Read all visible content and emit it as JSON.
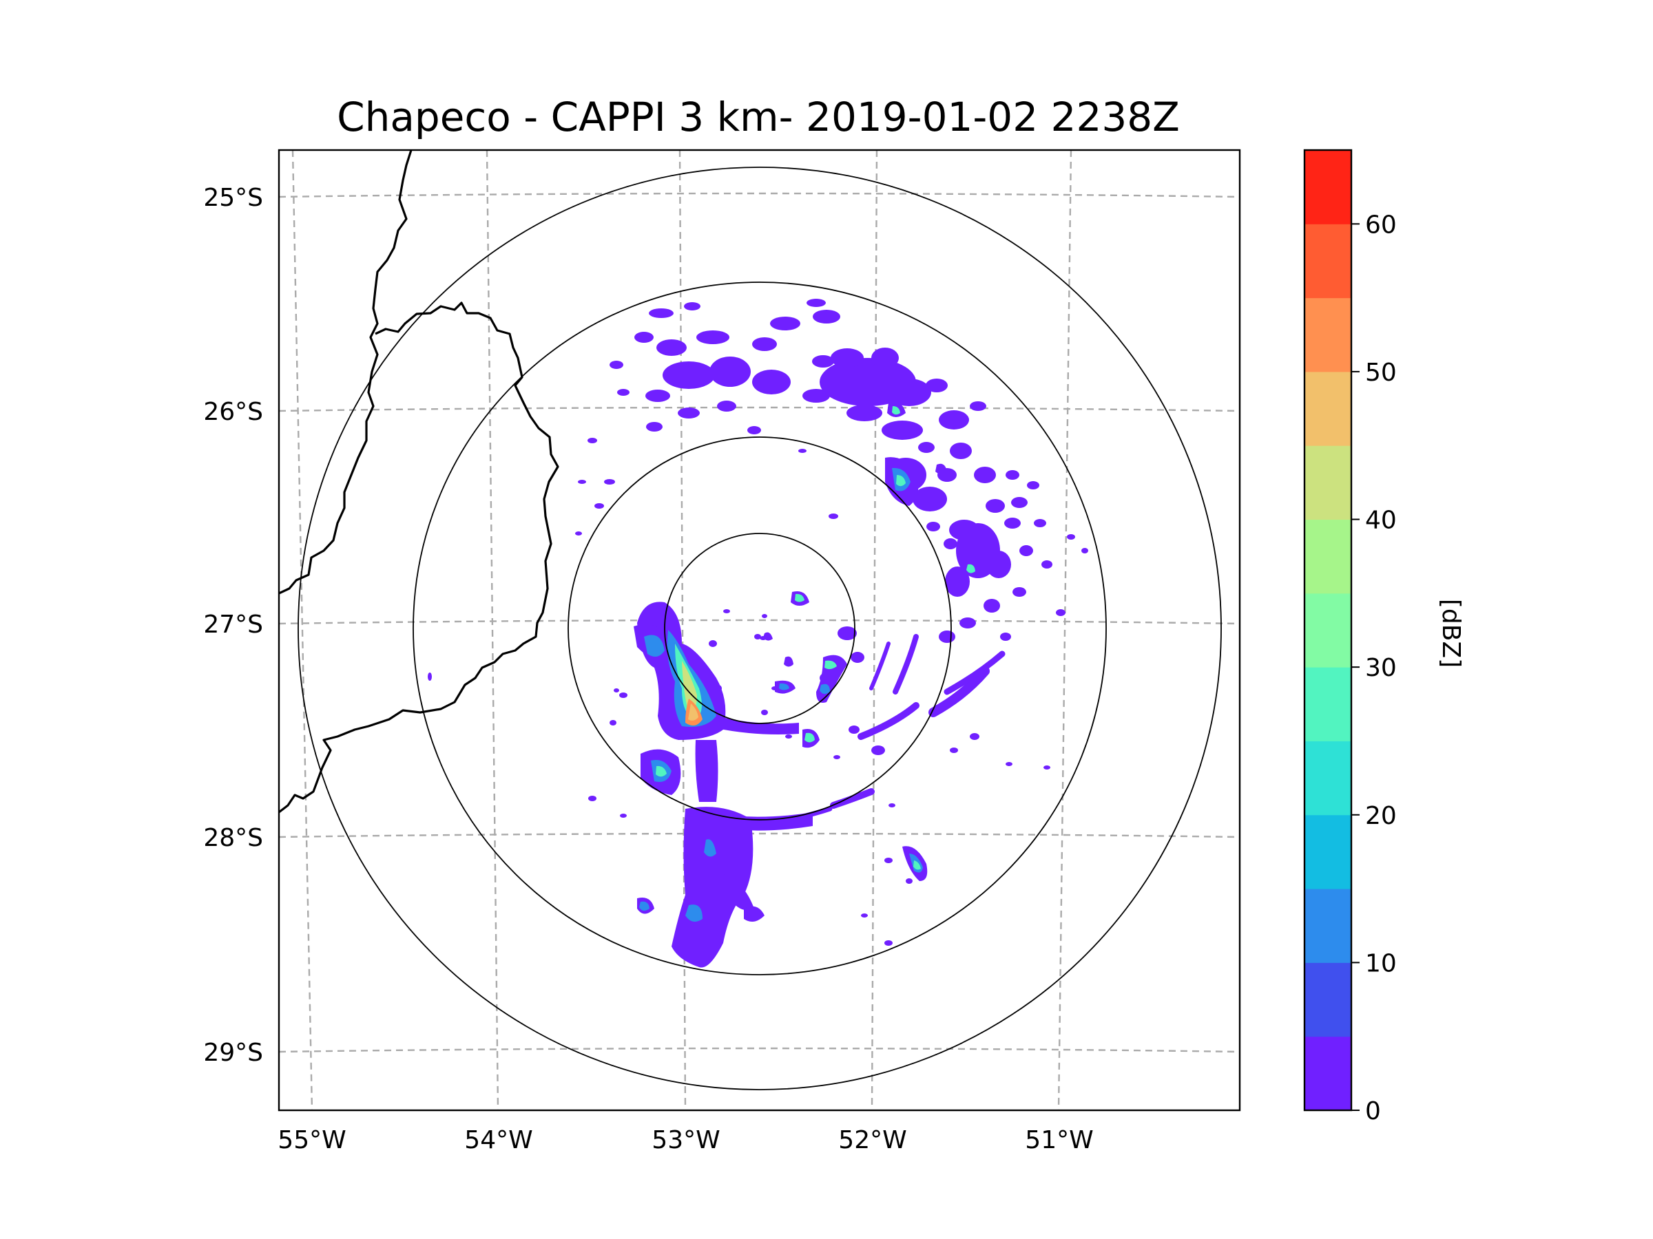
{
  "title": "Chapeco - CAPPI 3 km- 2019-01-02 2238Z",
  "map": {
    "lon_ticks": [
      "55°W",
      "54°W",
      "53°W",
      "52°W",
      "51°W"
    ],
    "lat_ticks": [
      "25°S",
      "26°S",
      "27°S",
      "28°S",
      "29°S"
    ],
    "range_rings_count": 4,
    "gridlines": true
  },
  "colorbar": {
    "label": "[dBZ]",
    "tick_labels": [
      "0",
      "10",
      "20",
      "30",
      "40",
      "50",
      "60"
    ],
    "levels": [
      0,
      5,
      10,
      15,
      20,
      25,
      30,
      35,
      40,
      45,
      50,
      55,
      60,
      65
    ],
    "colors": [
      "#7020ff",
      "#4050ee",
      "#2d8ced",
      "#13bde2",
      "#2ee1d6",
      "#52f4c0",
      "#82fba4",
      "#a6f58a",
      "#cce27f",
      "#f2c06b",
      "#ff9050",
      "#ff5c32",
      "#ff2416"
    ]
  },
  "echo_colors": {
    "weak": "#7020ff",
    "light": "#2d8ced",
    "moderate": "#52f4c0",
    "strong": "#cce27f",
    "heavy": "#ff9050"
  }
}
